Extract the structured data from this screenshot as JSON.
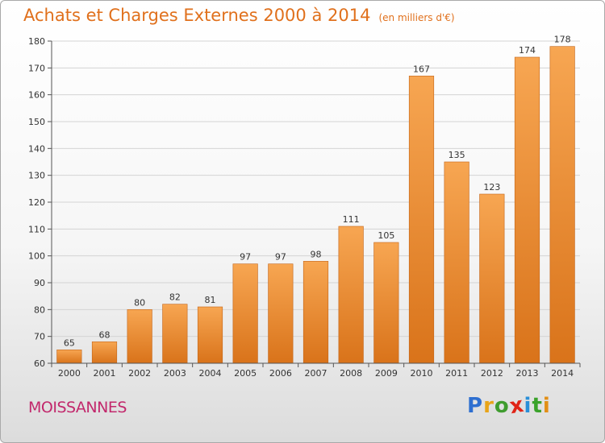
{
  "title": "Achats et Charges Externes 2000 à 2014",
  "subtitle": "(en milliers d'€)",
  "town": "MOISSANNES",
  "logo": {
    "letters": [
      {
        "ch": "P",
        "color": "#2e6fd0"
      },
      {
        "ch": "r",
        "color": "#e8a419"
      },
      {
        "ch": "o",
        "color": "#3f9c2f"
      },
      {
        "ch": "x",
        "color": "#e02417"
      },
      {
        "ch": "i",
        "color": "#2a8fd8"
      },
      {
        "ch": "t",
        "color": "#3aa22a"
      },
      {
        "ch": "i",
        "color": "#e28f16"
      }
    ]
  },
  "colors": {
    "bar_top": "#f7a652",
    "bar_bottom": "#d9731a",
    "bar_edge": "#c4661a",
    "grid": "#d4d4d4",
    "axis": "#555555"
  },
  "chart_data": {
    "type": "bar",
    "categories": [
      "2000",
      "2001",
      "2002",
      "2003",
      "2004",
      "2005",
      "2006",
      "2007",
      "2008",
      "2009",
      "2010",
      "2011",
      "2012",
      "2013",
      "2014"
    ],
    "values": [
      65,
      68,
      80,
      82,
      81,
      97,
      97,
      98,
      111,
      105,
      167,
      135,
      123,
      174,
      178
    ],
    "ylim": [
      60,
      180
    ],
    "yticks": [
      60,
      70,
      80,
      90,
      100,
      110,
      120,
      130,
      140,
      150,
      160,
      170,
      180
    ],
    "grid": true,
    "data_labels": true
  }
}
